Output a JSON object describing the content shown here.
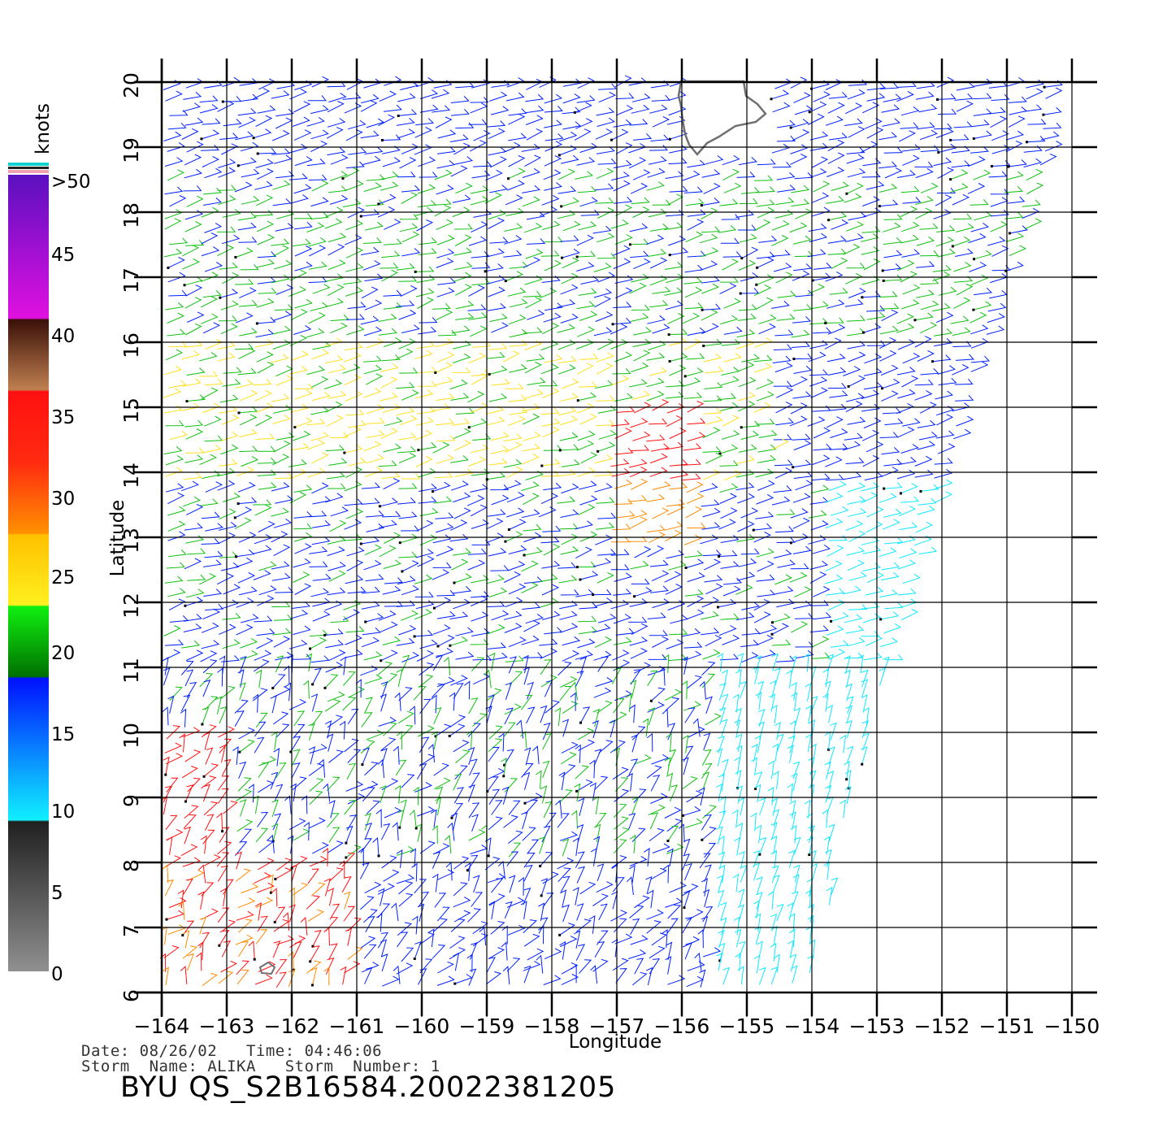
{
  "map": {
    "lon_range": [
      -164,
      -150
    ],
    "lat_range": [
      6,
      20
    ],
    "lon_ticks": [
      "-164",
      "-163",
      "-162",
      "-161",
      "-160",
      "-159",
      "-158",
      "-157",
      "-156",
      "-155",
      "-154",
      "-153",
      "-152",
      "-151",
      "-150"
    ],
    "lat_ticks": [
      "6",
      "7",
      "8",
      "9",
      "10",
      "11",
      "12",
      "13",
      "14",
      "15",
      "16",
      "17",
      "18",
      "19",
      "20"
    ],
    "xlabel": "Longitude",
    "ylabel": "Latitude",
    "grid": true
  },
  "colorbar": {
    "unit_label": "knots",
    "labels": [
      ">50",
      "45",
      "40",
      "35",
      "30",
      "25",
      "20",
      "15",
      "10",
      "5",
      "0"
    ],
    "colors": {
      "purple": "#6a0fc8",
      "magenta": "#e010e0",
      "brown": "#4a1a10",
      "tan": "#c08050",
      "red": "#ff1010",
      "orange": "#ff8a00",
      "yellow": "#ffe020",
      "green": "#10c010",
      "blue": "#0020ff",
      "cyan": "#10e8ff",
      "gray": "#808080"
    }
  },
  "info": {
    "date_line": "Date: 08/26/02   Time: 04:46:06",
    "storm_line": "Storm  Name: ALIKA   Storm  Number: 1",
    "product_title": "BYU  QS_S2B16584.20022381205"
  }
}
